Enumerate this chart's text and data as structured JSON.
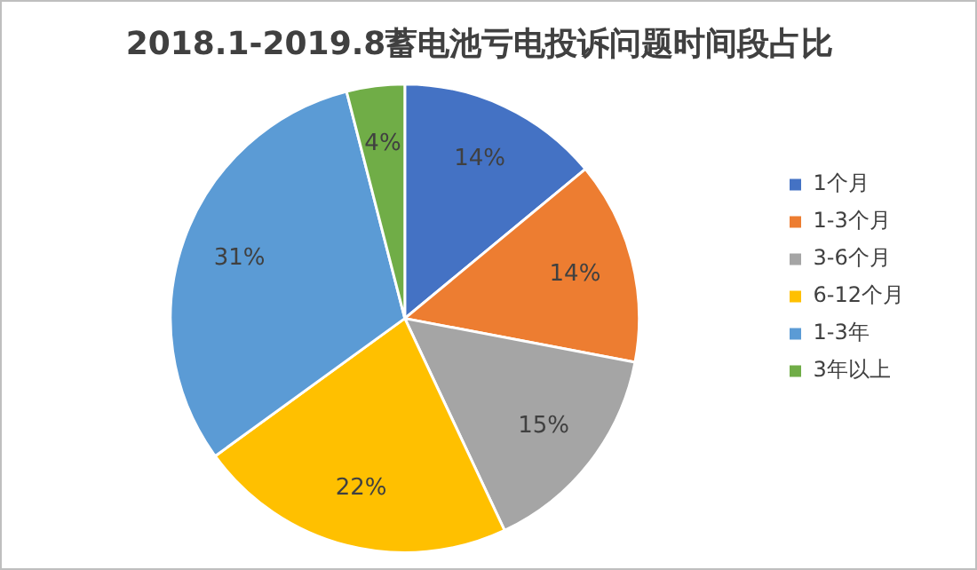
{
  "chart_data": {
    "type": "pie",
    "title": "2018.1-2019.8蓄电池亏电投诉问题时间段占比",
    "categories": [
      "1个月",
      "1-3个月",
      "3-6个月",
      "6-12个月",
      "1-3年",
      "3年以上"
    ],
    "values": [
      14,
      14,
      15,
      22,
      31,
      4
    ],
    "colors": [
      "#4472c4",
      "#ed7d31",
      "#a5a5a5",
      "#ffc000",
      "#5b9bd5",
      "#70ad47"
    ],
    "value_labels": [
      "14%",
      "14%",
      "15%",
      "22%",
      "31%",
      "4%"
    ],
    "legend": "right"
  }
}
